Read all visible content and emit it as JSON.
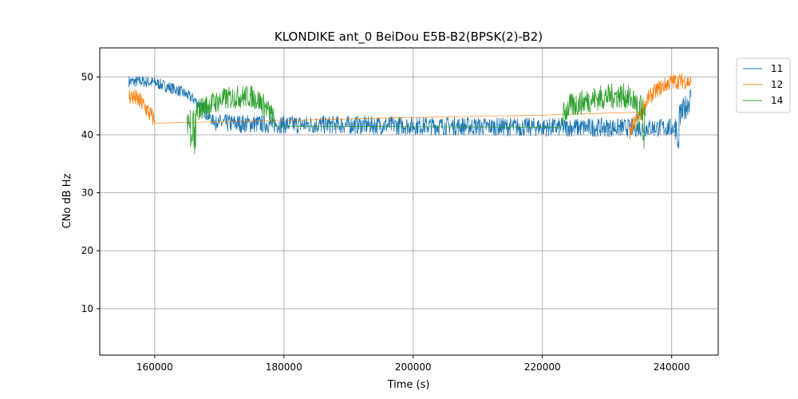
{
  "chart_data": {
    "type": "line",
    "title": "KLONDIKE ant_0 BeiDou E5B-B2(BPSK(2)-B2)",
    "xlabel": "Time (s)",
    "ylabel": "CNo dB Hz",
    "xlim": [
      151500,
      247200
    ],
    "ylim": [
      2,
      55
    ],
    "xticks": [
      160000,
      180000,
      200000,
      220000,
      240000
    ],
    "yticks": [
      10,
      20,
      30,
      40,
      50
    ],
    "grid": true,
    "legend_position": "outside-top-right",
    "series": [
      {
        "name": "11",
        "color": "#1f77b4",
        "segments": [
          [
            [
              156000,
              49.2
            ],
            [
              158000,
              49.2
            ],
            [
              160000,
              49.0
            ],
            [
              162000,
              48.3
            ],
            [
              164000,
              47.5
            ],
            [
              166000,
              46.2
            ],
            [
              167000,
              45.0
            ],
            [
              168000,
              43.5
            ],
            [
              169000,
              42.5
            ],
            [
              170000,
              42.0
            ]
          ],
          [
            [
              170000,
              42.0
            ],
            [
              180000,
              41.8
            ],
            [
              200000,
              41.6
            ],
            [
              220000,
              41.3
            ],
            [
              240500,
              41.2
            ]
          ],
          [
            [
              240500,
              41.2
            ],
            [
              241000,
              42.5
            ],
            [
              241500,
              43.5
            ],
            [
              242000,
              44.5
            ],
            [
              242500,
              45.5
            ],
            [
              243000,
              46.5
            ]
          ]
        ],
        "noise": [
          1.0,
          1.6,
          2.2
        ],
        "dips": [
          [
            169500,
            39.5
          ],
          [
            241000,
            37.5
          ]
        ]
      },
      {
        "name": "12",
        "color": "#ff7f0e",
        "segments": [
          [
            [
              156000,
              46.8
            ],
            [
              157000,
              46.3
            ],
            [
              158000,
              45.5
            ],
            [
              159000,
              44.0
            ],
            [
              160000,
              42.5
            ]
          ],
          [
            [
              160000,
              42.0
            ],
            [
              180000,
              42.5
            ],
            [
              200000,
              43.0
            ],
            [
              220000,
              43.4
            ],
            [
              235000,
              43.9
            ]
          ],
          [
            [
              233500,
              40.5
            ],
            [
              234500,
              42.5
            ],
            [
              235500,
              44.5
            ],
            [
              236500,
              46.5
            ],
            [
              238000,
              48.0
            ],
            [
              240000,
              49.2
            ],
            [
              242000,
              49.3
            ],
            [
              243000,
              49.0
            ]
          ]
        ],
        "noise": [
          1.6,
          0.0,
          1.4
        ],
        "dips": [
          [
            160000,
            41.2
          ],
          [
            233700,
            39.0
          ]
        ]
      },
      {
        "name": "14",
        "color": "#2ca02c",
        "segments": [
          [
            [
              165000,
              42.0
            ],
            [
              166000,
              43.0
            ],
            [
              167000,
              44.5
            ],
            [
              169000,
              45.5
            ],
            [
              171000,
              46.2
            ],
            [
              173000,
              46.6
            ],
            [
              175000,
              46.6
            ],
            [
              176000,
              46.0
            ],
            [
              177000,
              45.0
            ],
            [
              178000,
              43.5
            ],
            [
              178500,
              42.5
            ]
          ],
          [
            [
              178500,
              41.5
            ],
            [
              200000,
              41.4
            ],
            [
              223000,
              41.3
            ]
          ],
          [
            [
              223000,
              43.0
            ],
            [
              224000,
              44.8
            ],
            [
              226000,
              45.6
            ],
            [
              228000,
              46.2
            ],
            [
              230000,
              46.6
            ],
            [
              232000,
              46.8
            ],
            [
              233000,
              46.5
            ],
            [
              234000,
              46.0
            ],
            [
              235000,
              45.0
            ],
            [
              236000,
              43.5
            ]
          ]
        ],
        "noise": [
          2.0,
          0.0,
          2.2
        ],
        "dips": [
          [
            165700,
            37.5
          ],
          [
            166200,
            36.5
          ],
          [
            235600,
            37.5
          ],
          [
            234800,
            39.5
          ]
        ]
      }
    ]
  }
}
